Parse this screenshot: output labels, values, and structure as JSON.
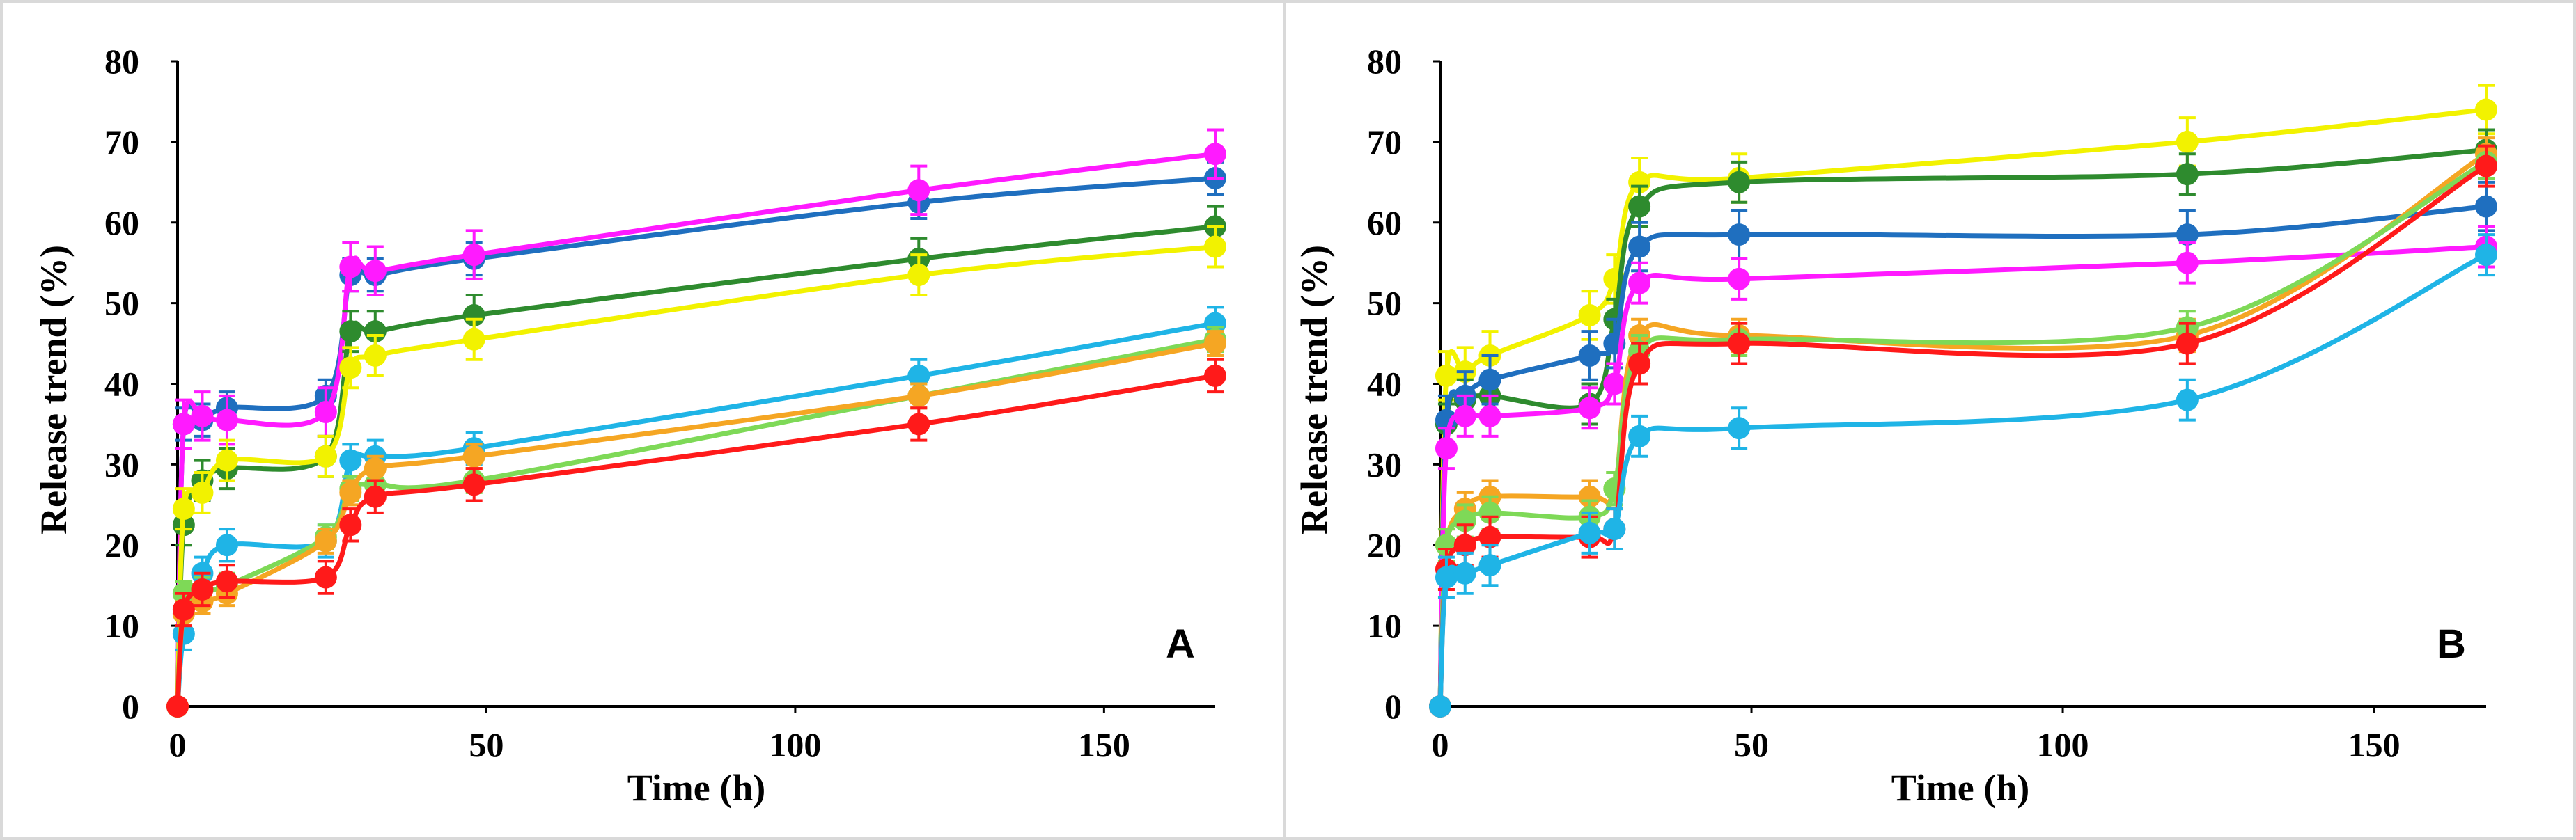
{
  "chart_data": [
    {
      "type": "line",
      "panel_label": "A",
      "xlabel": "Time (h)",
      "ylabel": "Release trend (%)",
      "xlim": [
        0,
        168
      ],
      "ylim": [
        0,
        80
      ],
      "x_ticks": [
        0,
        50,
        100,
        150
      ],
      "y_ticks": [
        0,
        10,
        20,
        30,
        40,
        50,
        60,
        70,
        80
      ],
      "x_tick_labels": [
        "0",
        "50",
        "100",
        "150"
      ],
      "y_tick_labels": [
        "0",
        "10",
        "20",
        "30",
        "40",
        "50",
        "60",
        "70",
        "80"
      ],
      "x": [
        0,
        1,
        4,
        8,
        24,
        28,
        32,
        48,
        120,
        168
      ],
      "series": [
        {
          "name": "blue",
          "color": "#1f6fbf",
          "values": [
            0,
            35,
            35.5,
            37,
            38.5,
            53.5,
            53.5,
            55.5,
            62.5,
            65.5
          ],
          "error": 2
        },
        {
          "name": "magenta",
          "color": "#ff1aff",
          "values": [
            0,
            35,
            36,
            35.5,
            36.5,
            54.5,
            54,
            56,
            64,
            68.5
          ],
          "error": 3
        },
        {
          "name": "dark green",
          "color": "#2e8b2e",
          "values": [
            0,
            22.5,
            28,
            29.5,
            31,
            46.5,
            46.5,
            48.5,
            55.5,
            59.5
          ],
          "error": 2.5
        },
        {
          "name": "yellow",
          "color": "#f2f200",
          "values": [
            0,
            24.5,
            26.5,
            30.5,
            31,
            42,
            43.5,
            45.5,
            53.5,
            57
          ],
          "error": 2.5
        },
        {
          "name": "cyan",
          "color": "#1fb4e6",
          "values": [
            0,
            9,
            16.5,
            20,
            20.5,
            30.5,
            31,
            32,
            41,
            47.5
          ],
          "error": 2
        },
        {
          "name": "light green",
          "color": "#7ed957",
          "values": [
            0,
            14,
            14.5,
            15,
            21,
            27,
            27.5,
            28,
            38.5,
            45.5
          ],
          "error": 1.5
        },
        {
          "name": "orange",
          "color": "#f5a623",
          "values": [
            0,
            11.5,
            13,
            14,
            20.5,
            26.5,
            29.5,
            31,
            38.5,
            45
          ],
          "error": 1.5
        },
        {
          "name": "red",
          "color": "#ff1a1a",
          "values": [
            0,
            12,
            14.5,
            15.5,
            16,
            22.5,
            26,
            27.5,
            35,
            41
          ],
          "error": 2
        }
      ]
    },
    {
      "type": "line",
      "panel_label": "B",
      "xlabel": "Time (h)",
      "ylabel": "Release trend (%)",
      "xlim": [
        0,
        168
      ],
      "ylim": [
        0,
        80
      ],
      "x_ticks": [
        0,
        50,
        100,
        150
      ],
      "y_ticks": [
        0,
        10,
        20,
        30,
        40,
        50,
        60,
        70,
        80
      ],
      "x_tick_labels": [
        "0",
        "50",
        "100",
        "150"
      ],
      "y_tick_labels": [
        "0",
        "10",
        "20",
        "30",
        "40",
        "50",
        "60",
        "70",
        "80"
      ],
      "x": [
        0,
        1,
        4,
        8,
        24,
        28,
        32,
        48,
        120,
        168
      ],
      "series": [
        {
          "name": "yellow",
          "color": "#f2f200",
          "values": [
            0,
            41,
            41.5,
            43.5,
            48.5,
            53,
            65,
            65.5,
            70,
            74
          ],
          "error": 3
        },
        {
          "name": "dark green",
          "color": "#2e8b2e",
          "values": [
            0,
            35,
            38,
            38.5,
            37.5,
            48,
            62,
            65,
            66,
            69
          ],
          "error": 2.5
        },
        {
          "name": "blue",
          "color": "#1f6fbf",
          "values": [
            0,
            35.5,
            38.5,
            40.5,
            43.5,
            45,
            57,
            58.5,
            58.5,
            62
          ],
          "error": 3
        },
        {
          "name": "magenta",
          "color": "#ff1aff",
          "values": [
            0,
            32,
            36,
            36,
            37,
            40,
            52.5,
            53,
            55,
            57
          ],
          "error": 2.5
        },
        {
          "name": "orange",
          "color": "#f5a623",
          "values": [
            0,
            20,
            24.5,
            26,
            26,
            27,
            46,
            46,
            46,
            68.5
          ],
          "error": 2
        },
        {
          "name": "light green",
          "color": "#7ed957",
          "values": [
            0,
            20,
            23,
            24,
            23.5,
            27,
            44,
            45.5,
            47,
            67.5
          ],
          "error": 2
        },
        {
          "name": "red",
          "color": "#ff1a1a",
          "values": [
            0,
            17,
            20,
            21,
            21,
            22,
            42.5,
            45,
            45,
            67
          ],
          "error": 2.5
        },
        {
          "name": "cyan",
          "color": "#1fb4e6",
          "values": [
            0,
            16,
            16.5,
            17.5,
            21.5,
            22,
            33.5,
            34.5,
            38,
            56
          ],
          "error": 2.5
        }
      ]
    }
  ]
}
